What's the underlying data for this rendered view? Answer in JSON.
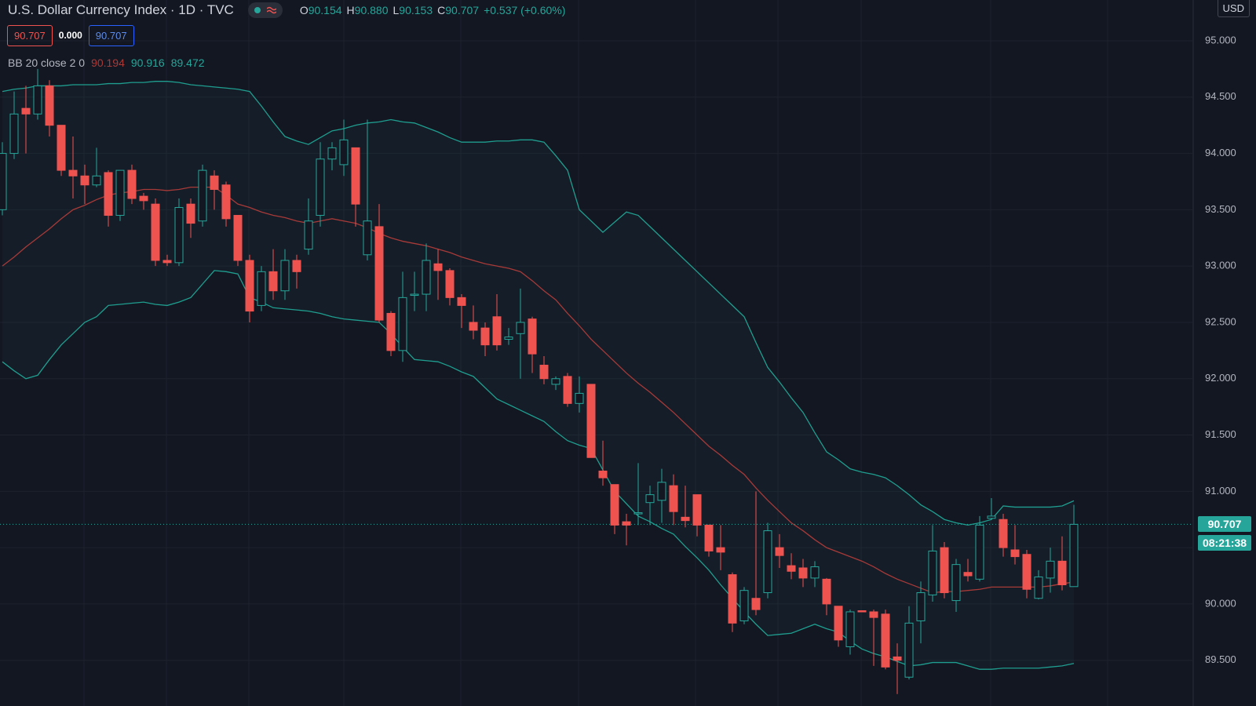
{
  "chart_data": {
    "type": "candlestick",
    "header": {
      "title": "U.S. Dollar Currency Index · 1D · TVC",
      "ohlc": [
        {
          "letter": "O",
          "value": "90.154"
        },
        {
          "letter": "H",
          "value": "90.880"
        },
        {
          "letter": "L",
          "value": "90.153"
        },
        {
          "letter": "C",
          "value": "90.707"
        }
      ],
      "change": "+0.537 (+0.60%)",
      "bid": "90.707",
      "spread": "0.000",
      "ask": "90.707",
      "indicator": "BB 20 close 2 0",
      "indicator_values": [
        "90.194",
        "90.916",
        "89.472"
      ],
      "currency": "USD",
      "last_price": "90.707",
      "countdown": "08:21:38"
    },
    "last": 90.707,
    "up_color": "#26a69a",
    "down_color": "#ef5350",
    "band_color": "#1f9e8f",
    "basis_color": "#a83a38",
    "ylim": [
      89.094,
      95.362
    ],
    "yticks": [
      {
        "value": 95,
        "label": "95.000"
      },
      {
        "value": 94.5,
        "label": "94.500"
      },
      {
        "value": 94,
        "label": "94.000"
      },
      {
        "value": 93.5,
        "label": "93.500"
      },
      {
        "value": 93,
        "label": "93.000"
      },
      {
        "value": 92.5,
        "label": "92.500"
      },
      {
        "value": 92,
        "label": "92.000"
      },
      {
        "value": 91.5,
        "label": "91.500"
      },
      {
        "value": 91,
        "label": "91.000"
      },
      {
        "value": 90.5,
        "label": "90.500"
      },
      {
        "value": 90,
        "label": "90.000"
      },
      {
        "value": 89.5,
        "label": "89.500"
      }
    ],
    "grid": true,
    "open": [
      93.5,
      94.0,
      94.4,
      94.35,
      94.6,
      94.25,
      93.85,
      93.8,
      93.72,
      93.83,
      93.45,
      93.85,
      93.62,
      93.55,
      93.05,
      93.03,
      93.55,
      93.4,
      93.8,
      93.72,
      93.45,
      93.05,
      92.65,
      92.95,
      92.78,
      93.05,
      93.15,
      93.45,
      93.95,
      93.9,
      94.05,
      93.1,
      93.35,
      92.58,
      92.25,
      92.75,
      92.75,
      93.02,
      92.96,
      92.72,
      92.5,
      92.45,
      92.55,
      92.35,
      92.4,
      92.53,
      92.12,
      91.95,
      92.02,
      91.78,
      91.95,
      91.18,
      91.06,
      90.73,
      90.8,
      90.9,
      90.92,
      91.05,
      90.77,
      90.97,
      90.7,
      90.5,
      90.26,
      89.85,
      90.05,
      90.1,
      90.5,
      90.34,
      90.32,
      90.23,
      90.22,
      89.98,
      89.62,
      89.94,
      89.93,
      89.91,
      89.53,
      89.35,
      89.85,
      90.08,
      90.5,
      90.03,
      90.28,
      90.22,
      90.76,
      90.75,
      90.48,
      90.44,
      90.05,
      90.23,
      90.38,
      90.154
    ],
    "high": [
      94.1,
      94.55,
      94.6,
      94.75,
      94.65,
      94.25,
      94.15,
      93.9,
      94.05,
      93.85,
      93.85,
      93.9,
      93.65,
      93.6,
      93.1,
      93.6,
      93.6,
      93.9,
      93.85,
      93.75,
      93.45,
      93.1,
      93.0,
      93.15,
      93.15,
      93.1,
      93.6,
      94.1,
      94.1,
      94.3,
      94.05,
      94.3,
      93.55,
      92.6,
      92.95,
      92.95,
      93.2,
      93.15,
      92.98,
      92.75,
      92.65,
      92.5,
      92.75,
      92.45,
      92.8,
      92.55,
      92.2,
      92.02,
      92.05,
      92.02,
      91.95,
      91.45,
      91.06,
      90.8,
      91.25,
      91.05,
      91.2,
      91.15,
      91.05,
      90.97,
      90.7,
      90.7,
      90.28,
      90.15,
      91.0,
      90.72,
      90.62,
      90.45,
      90.4,
      90.38,
      90.23,
      89.98,
      89.95,
      89.94,
      89.95,
      89.95,
      89.65,
      89.98,
      90.2,
      90.7,
      90.55,
      90.4,
      90.4,
      90.78,
      90.94,
      90.8,
      90.7,
      90.48,
      90.3,
      90.5,
      90.6,
      90.88
    ],
    "low": [
      93.45,
      93.95,
      94.0,
      94.3,
      94.15,
      93.8,
      93.6,
      93.55,
      93.7,
      93.35,
      93.4,
      93.55,
      93.5,
      93.0,
      93.0,
      93.0,
      93.25,
      93.35,
      93.5,
      93.35,
      93.0,
      92.5,
      92.6,
      92.7,
      92.7,
      92.8,
      93.1,
      93.35,
      93.85,
      93.8,
      93.35,
      93.05,
      92.5,
      92.2,
      92.15,
      92.6,
      92.6,
      92.7,
      92.65,
      92.45,
      92.35,
      92.2,
      92.25,
      92.3,
      92.0,
      92.05,
      91.95,
      91.9,
      91.75,
      91.7,
      91.3,
      91.05,
      90.62,
      90.52,
      90.7,
      90.7,
      90.72,
      90.7,
      90.68,
      90.6,
      90.42,
      90.3,
      89.75,
      89.82,
      89.9,
      90.05,
      90.32,
      90.22,
      90.15,
      90.15,
      89.9,
      89.62,
      89.55,
      89.93,
      89.45,
      89.42,
      89.2,
      89.33,
      89.65,
      90.02,
      90.05,
      89.93,
      90.2,
      90.2,
      90.75,
      90.42,
      90.35,
      90.05,
      90.04,
      90.1,
      90.12,
      90.153
    ],
    "close": [
      94.0,
      94.35,
      94.35,
      94.6,
      94.25,
      93.85,
      93.8,
      93.72,
      93.8,
      93.45,
      93.85,
      93.6,
      93.58,
      93.05,
      93.03,
      93.52,
      93.38,
      93.85,
      93.68,
      93.42,
      93.05,
      92.6,
      92.95,
      92.78,
      93.05,
      92.95,
      93.4,
      93.95,
      94.05,
      94.12,
      93.55,
      93.4,
      92.52,
      92.25,
      92.72,
      92.75,
      93.05,
      92.96,
      92.72,
      92.65,
      92.43,
      92.3,
      92.3,
      92.37,
      92.5,
      92.22,
      92.0,
      92.0,
      91.78,
      91.87,
      91.3,
      91.12,
      90.7,
      90.7,
      90.81,
      90.97,
      91.08,
      90.82,
      90.74,
      90.7,
      90.47,
      90.46,
      89.83,
      90.12,
      89.95,
      90.65,
      90.43,
      90.29,
      90.23,
      90.33,
      90.0,
      89.68,
      89.93,
      89.93,
      89.88,
      89.44,
      89.5,
      89.83,
      90.1,
      90.47,
      90.1,
      90.35,
      90.25,
      90.7,
      90.78,
      90.5,
      90.42,
      90.13,
      90.24,
      90.38,
      90.17,
      90.707
    ],
    "bands": {
      "upper": [
        94.55,
        94.57,
        94.58,
        94.6,
        94.6,
        94.6,
        94.61,
        94.61,
        94.61,
        94.62,
        94.62,
        94.63,
        94.63,
        94.64,
        94.64,
        94.63,
        94.61,
        94.6,
        94.59,
        94.58,
        94.57,
        94.55,
        94.42,
        94.28,
        94.15,
        94.11,
        94.08,
        94.14,
        94.2,
        94.22,
        94.25,
        94.27,
        94.28,
        94.3,
        94.28,
        94.27,
        94.23,
        94.19,
        94.14,
        94.1,
        94.1,
        94.1,
        94.11,
        94.11,
        94.12,
        94.12,
        94.1,
        93.98,
        93.85,
        93.5,
        93.4,
        93.3,
        93.39,
        93.48,
        93.45,
        93.35,
        93.25,
        93.15,
        93.05,
        92.95,
        92.85,
        92.75,
        92.65,
        92.55,
        92.32,
        92.1,
        91.97,
        91.83,
        91.7,
        91.52,
        91.35,
        91.28,
        91.2,
        91.17,
        91.15,
        91.12,
        91.05,
        90.97,
        90.88,
        90.82,
        90.75,
        90.72,
        90.7,
        90.72,
        90.75,
        90.87,
        90.86,
        90.86,
        90.86,
        90.86,
        90.87,
        90.916
      ],
      "basis": [
        93.0,
        93.08,
        93.17,
        93.25,
        93.33,
        93.42,
        93.5,
        93.54,
        93.59,
        93.63,
        93.65,
        93.66,
        93.68,
        93.68,
        93.67,
        93.68,
        93.7,
        93.7,
        93.7,
        93.63,
        93.55,
        93.52,
        93.48,
        93.45,
        93.43,
        93.4,
        93.38,
        93.4,
        93.42,
        93.4,
        93.38,
        93.34,
        93.29,
        93.25,
        93.22,
        93.2,
        93.18,
        93.15,
        93.12,
        93.08,
        93.05,
        93.02,
        93.0,
        92.98,
        92.95,
        92.87,
        92.78,
        92.7,
        92.58,
        92.47,
        92.35,
        92.25,
        92.15,
        92.05,
        91.96,
        91.88,
        91.79,
        91.7,
        91.6,
        91.5,
        91.4,
        91.32,
        91.23,
        91.15,
        91.03,
        90.92,
        90.82,
        90.72,
        90.65,
        90.57,
        90.5,
        90.46,
        90.42,
        90.38,
        90.33,
        90.27,
        90.22,
        90.18,
        90.14,
        90.1,
        90.11,
        90.11,
        90.12,
        90.13,
        90.15,
        90.15,
        90.15,
        90.15,
        90.15,
        90.16,
        90.18,
        90.194
      ],
      "lower": [
        92.15,
        92.07,
        92.0,
        92.03,
        92.17,
        92.3,
        92.4,
        92.5,
        92.55,
        92.65,
        92.66,
        92.67,
        92.68,
        92.66,
        92.65,
        92.68,
        92.72,
        92.84,
        92.96,
        92.95,
        92.93,
        92.72,
        92.68,
        92.63,
        92.62,
        92.61,
        92.6,
        92.58,
        92.55,
        92.53,
        92.52,
        92.51,
        92.5,
        92.4,
        92.28,
        92.17,
        92.16,
        92.15,
        92.11,
        92.06,
        92.02,
        91.92,
        91.82,
        91.77,
        91.72,
        91.67,
        91.62,
        91.53,
        91.45,
        91.41,
        91.38,
        91.19,
        91.0,
        90.89,
        90.78,
        90.73,
        90.67,
        90.62,
        90.51,
        90.41,
        90.3,
        90.17,
        90.05,
        89.93,
        89.82,
        89.72,
        89.73,
        89.74,
        89.78,
        89.82,
        89.78,
        89.75,
        89.67,
        89.6,
        89.56,
        89.53,
        89.49,
        89.45,
        89.46,
        89.48,
        89.48,
        89.48,
        89.45,
        89.42,
        89.42,
        89.43,
        89.43,
        89.43,
        89.43,
        89.44,
        89.45,
        89.472
      ]
    }
  }
}
